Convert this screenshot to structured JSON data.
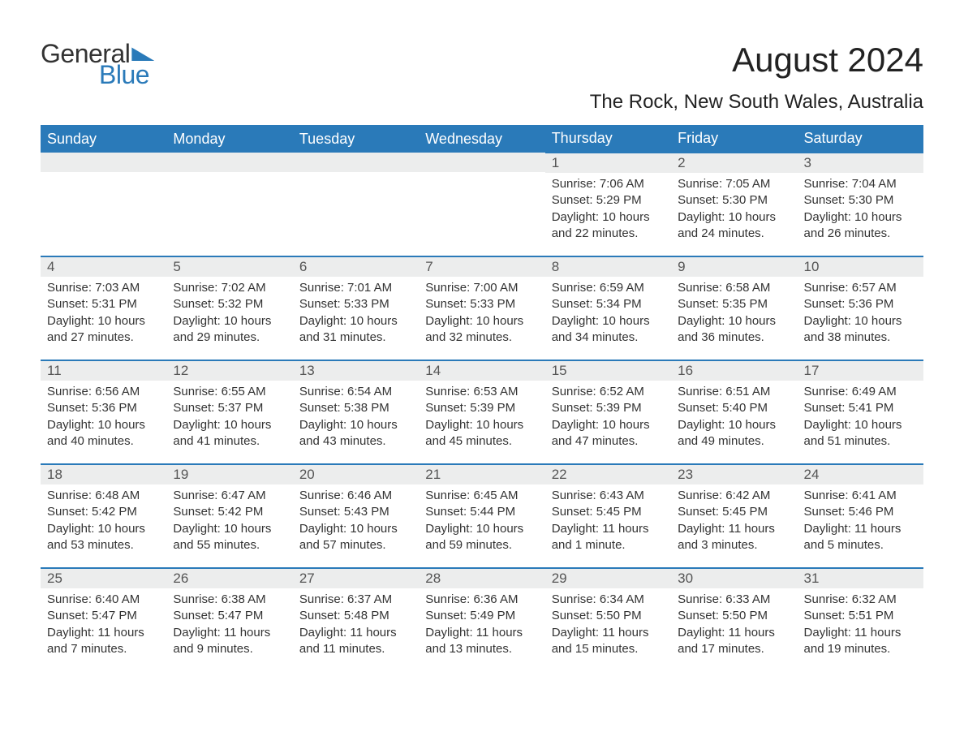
{
  "brand": {
    "word1": "General",
    "word2": "Blue",
    "color": "#2a7ab9"
  },
  "title": "August 2024",
  "subtitle": "The Rock, New South Wales, Australia",
  "columns": [
    "Sunday",
    "Monday",
    "Tuesday",
    "Wednesday",
    "Thursday",
    "Friday",
    "Saturday"
  ],
  "style": {
    "header_bg": "#2a7ab9",
    "header_fg": "#ffffff",
    "row_sep": "#2a7ab9",
    "daynum_bg": "#eceded",
    "text_color": "#333333",
    "page_bg": "#ffffff",
    "title_fontsize": 42,
    "subtitle_fontsize": 24,
    "header_fontsize": 18,
    "body_fontsize": 15
  },
  "weeks": [
    [
      null,
      null,
      null,
      null,
      {
        "n": "1",
        "sunrise": "7:06 AM",
        "sunset": "5:29 PM",
        "daylight": "10 hours and 22 minutes."
      },
      {
        "n": "2",
        "sunrise": "7:05 AM",
        "sunset": "5:30 PM",
        "daylight": "10 hours and 24 minutes."
      },
      {
        "n": "3",
        "sunrise": "7:04 AM",
        "sunset": "5:30 PM",
        "daylight": "10 hours and 26 minutes."
      }
    ],
    [
      {
        "n": "4",
        "sunrise": "7:03 AM",
        "sunset": "5:31 PM",
        "daylight": "10 hours and 27 minutes."
      },
      {
        "n": "5",
        "sunrise": "7:02 AM",
        "sunset": "5:32 PM",
        "daylight": "10 hours and 29 minutes."
      },
      {
        "n": "6",
        "sunrise": "7:01 AM",
        "sunset": "5:33 PM",
        "daylight": "10 hours and 31 minutes."
      },
      {
        "n": "7",
        "sunrise": "7:00 AM",
        "sunset": "5:33 PM",
        "daylight": "10 hours and 32 minutes."
      },
      {
        "n": "8",
        "sunrise": "6:59 AM",
        "sunset": "5:34 PM",
        "daylight": "10 hours and 34 minutes."
      },
      {
        "n": "9",
        "sunrise": "6:58 AM",
        "sunset": "5:35 PM",
        "daylight": "10 hours and 36 minutes."
      },
      {
        "n": "10",
        "sunrise": "6:57 AM",
        "sunset": "5:36 PM",
        "daylight": "10 hours and 38 minutes."
      }
    ],
    [
      {
        "n": "11",
        "sunrise": "6:56 AM",
        "sunset": "5:36 PM",
        "daylight": "10 hours and 40 minutes."
      },
      {
        "n": "12",
        "sunrise": "6:55 AM",
        "sunset": "5:37 PM",
        "daylight": "10 hours and 41 minutes."
      },
      {
        "n": "13",
        "sunrise": "6:54 AM",
        "sunset": "5:38 PM",
        "daylight": "10 hours and 43 minutes."
      },
      {
        "n": "14",
        "sunrise": "6:53 AM",
        "sunset": "5:39 PM",
        "daylight": "10 hours and 45 minutes."
      },
      {
        "n": "15",
        "sunrise": "6:52 AM",
        "sunset": "5:39 PM",
        "daylight": "10 hours and 47 minutes."
      },
      {
        "n": "16",
        "sunrise": "6:51 AM",
        "sunset": "5:40 PM",
        "daylight": "10 hours and 49 minutes."
      },
      {
        "n": "17",
        "sunrise": "6:49 AM",
        "sunset": "5:41 PM",
        "daylight": "10 hours and 51 minutes."
      }
    ],
    [
      {
        "n": "18",
        "sunrise": "6:48 AM",
        "sunset": "5:42 PM",
        "daylight": "10 hours and 53 minutes."
      },
      {
        "n": "19",
        "sunrise": "6:47 AM",
        "sunset": "5:42 PM",
        "daylight": "10 hours and 55 minutes."
      },
      {
        "n": "20",
        "sunrise": "6:46 AM",
        "sunset": "5:43 PM",
        "daylight": "10 hours and 57 minutes."
      },
      {
        "n": "21",
        "sunrise": "6:45 AM",
        "sunset": "5:44 PM",
        "daylight": "10 hours and 59 minutes."
      },
      {
        "n": "22",
        "sunrise": "6:43 AM",
        "sunset": "5:45 PM",
        "daylight": "11 hours and 1 minute."
      },
      {
        "n": "23",
        "sunrise": "6:42 AM",
        "sunset": "5:45 PM",
        "daylight": "11 hours and 3 minutes."
      },
      {
        "n": "24",
        "sunrise": "6:41 AM",
        "sunset": "5:46 PM",
        "daylight": "11 hours and 5 minutes."
      }
    ],
    [
      {
        "n": "25",
        "sunrise": "6:40 AM",
        "sunset": "5:47 PM",
        "daylight": "11 hours and 7 minutes."
      },
      {
        "n": "26",
        "sunrise": "6:38 AM",
        "sunset": "5:47 PM",
        "daylight": "11 hours and 9 minutes."
      },
      {
        "n": "27",
        "sunrise": "6:37 AM",
        "sunset": "5:48 PM",
        "daylight": "11 hours and 11 minutes."
      },
      {
        "n": "28",
        "sunrise": "6:36 AM",
        "sunset": "5:49 PM",
        "daylight": "11 hours and 13 minutes."
      },
      {
        "n": "29",
        "sunrise": "6:34 AM",
        "sunset": "5:50 PM",
        "daylight": "11 hours and 15 minutes."
      },
      {
        "n": "30",
        "sunrise": "6:33 AM",
        "sunset": "5:50 PM",
        "daylight": "11 hours and 17 minutes."
      },
      {
        "n": "31",
        "sunrise": "6:32 AM",
        "sunset": "5:51 PM",
        "daylight": "11 hours and 19 minutes."
      }
    ]
  ],
  "labels": {
    "sunrise": "Sunrise:",
    "sunset": "Sunset:",
    "daylight": "Daylight:"
  }
}
